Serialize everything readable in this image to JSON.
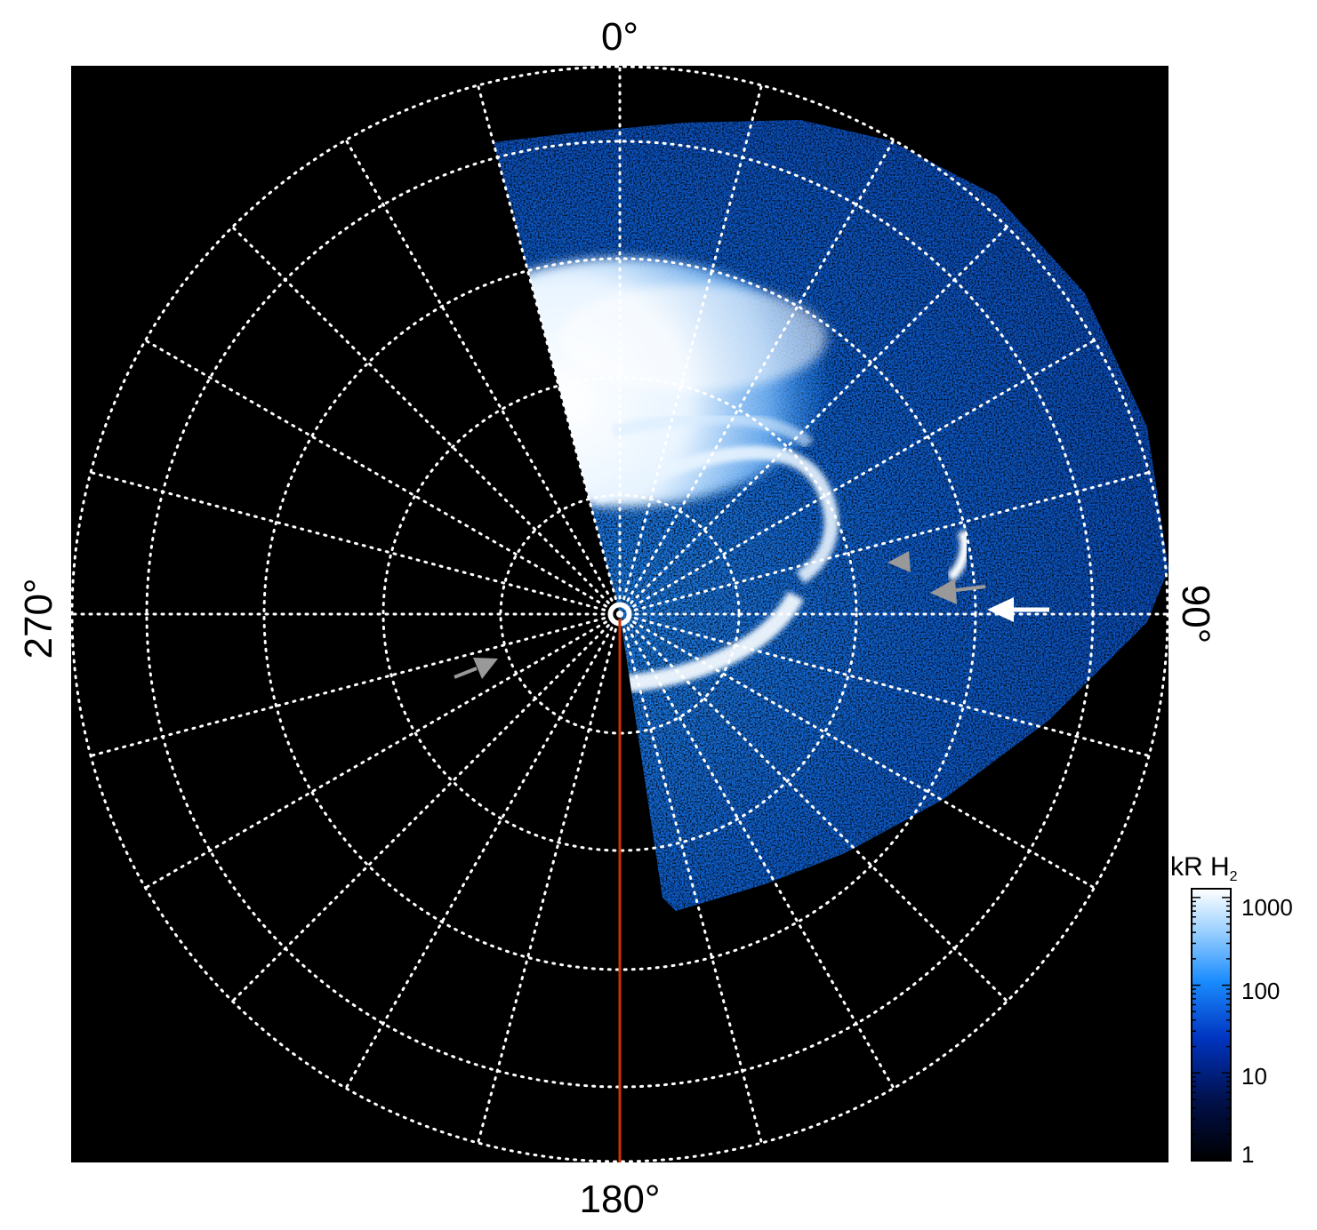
{
  "figure": {
    "labels": {
      "top": "0°",
      "right": "90°",
      "bottom": "180°",
      "left": "270°"
    },
    "colorbar": {
      "title": "kR H",
      "title_subscript": "2",
      "scale": "log",
      "range": [
        1,
        1000
      ],
      "ticks": [
        "1000",
        "100",
        "10",
        "1"
      ],
      "colors": [
        "#000000",
        "#00104a",
        "#0034c0",
        "#1a8cff",
        "#9fd2ff",
        "#ffffff"
      ]
    },
    "colors": {
      "background": "#000000",
      "grid": "#ffffff",
      "meridian_line": "#cc3300",
      "arrow_white": "#ffffff",
      "arrow_gray": "#999999"
    },
    "icons": [
      "white-arrow-icon",
      "gray-arrow-icon",
      "gray-triangle-marker-icon"
    ]
  }
}
